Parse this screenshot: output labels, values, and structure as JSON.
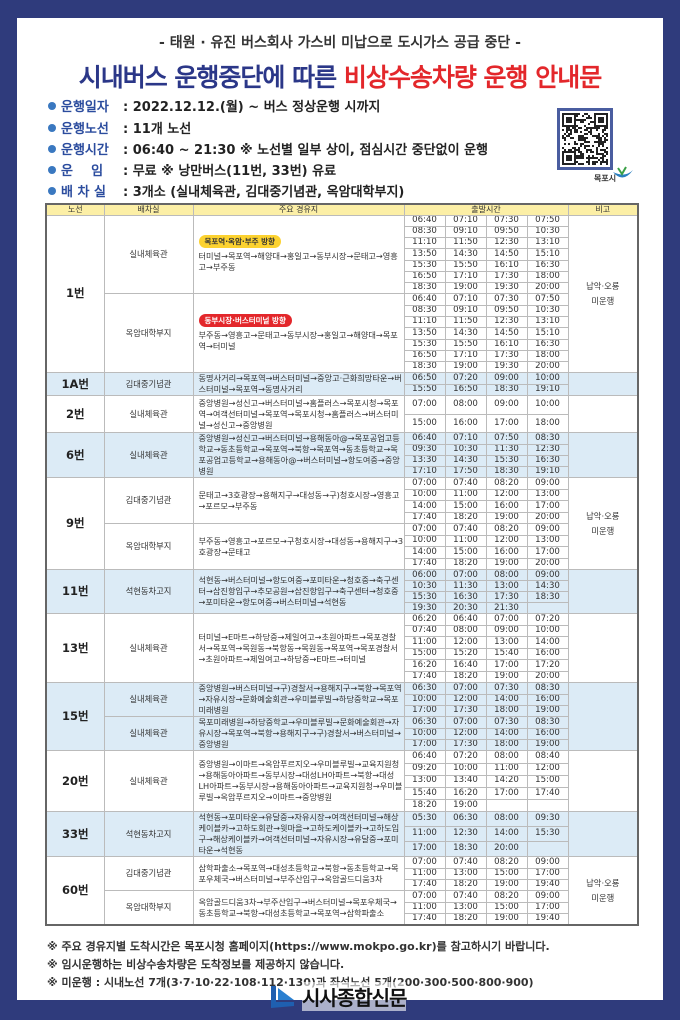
{
  "header": {
    "subtitle": "- 태원 · 유진 버스회사 가스비 미납으로 도시가스 공급 중단 -",
    "title_part1": "시내버스 운행중단에 따른 ",
    "title_part2": "비상수송차량 운행 안내문"
  },
  "info": [
    {
      "label": "운행일자",
      "value": ": 2022.12.12.(월) ~ 버스 정상운행 시까지"
    },
    {
      "label": "운행노선",
      "value": ": 11개 노선"
    },
    {
      "label": "운행시간",
      "value": ": 06:40 ~ 21:30 ※ 노선별 일부 상이, 점심시간 중단없이 운행"
    },
    {
      "label": "운    임",
      "value": ": 무료 ※ 낭만버스(11번, 33번) 유료"
    },
    {
      "label": "배 차 실",
      "value": ": 3개소 (실내체육관, 김대중기념관, 옥암대학부지)"
    }
  ],
  "qr": {
    "label": "목포시"
  },
  "colors": {
    "navy": "#2f3b7c",
    "title_blue": "#2b3788",
    "title_red": "#e3272b",
    "header_yellow": "#fcefa6",
    "shaded_blue": "#dcebf6",
    "badge_yellow": "#fcd230",
    "badge_red": "#e3272b"
  },
  "table": {
    "headers": [
      "노선",
      "배차실",
      "주요 경유지",
      "출발시간",
      "비고"
    ],
    "routes": [
      {
        "name": "1번",
        "shaded": false,
        "note": "납악·오룡 미운행",
        "groups": [
          {
            "depot": "실내체육관",
            "badge": "목포역·옥암·부주 방향",
            "badge_color": "yellow",
            "path": "터미널→목포역→해양대→홍일고→동부시장→문태고→영흥고→부주동",
            "times": [
              [
                "06:40",
                "07:10",
                "07:30",
                "07:50"
              ],
              [
                "08:30",
                "09:10",
                "09:50",
                "10:30"
              ],
              [
                "11:10",
                "11:50",
                "12:30",
                "13:10"
              ],
              [
                "13:50",
                "14:30",
                "14:50",
                "15:10"
              ],
              [
                "15:30",
                "15:50",
                "16:10",
                "16:30"
              ],
              [
                "16:50",
                "17:10",
                "17:30",
                "18:00"
              ],
              [
                "18:30",
                "19:00",
                "19:30",
                "20:00"
              ]
            ]
          },
          {
            "depot": "옥암대학부지",
            "badge": "동부시장·버스터미널 방향",
            "badge_color": "red",
            "path": "부주동→영흥고→문태고→동부시장→홍일고→해양대→목포역→터미널",
            "times": [
              [
                "06:40",
                "07:10",
                "07:30",
                "07:50"
              ],
              [
                "08:30",
                "09:10",
                "09:50",
                "10:30"
              ],
              [
                "11:10",
                "11:50",
                "12:30",
                "13:10"
              ],
              [
                "13:50",
                "14:30",
                "14:50",
                "15:10"
              ],
              [
                "15:30",
                "15:50",
                "16:10",
                "16:30"
              ],
              [
                "16:50",
                "17:10",
                "17:30",
                "18:00"
              ],
              [
                "18:30",
                "19:00",
                "19:30",
                "20:00"
              ]
            ]
          }
        ]
      },
      {
        "name": "1A번",
        "shaded": true,
        "note": "",
        "groups": [
          {
            "depot": "김대중기념관",
            "path": "동명사거리→목포역→버스터미널→중앙고·근화희망타운→버스터미널→목포역→동명사거리",
            "times": [
              [
                "06:50",
                "07:20",
                "09:00",
                "10:00"
              ],
              [
                "15:50",
                "16:50",
                "18:30",
                "19:10"
              ]
            ]
          }
        ]
      },
      {
        "name": "2번",
        "shaded": false,
        "note": "",
        "groups": [
          {
            "depot": "실내체육관",
            "path": "중앙병원→성신고→버스터미널→홈플러스→목포시청→목포역→여객선터미널→목포역→목포시청→홈플러스→버스터미널→성신고→중앙병원",
            "times": [
              [
                "07:00",
                "08:00",
                "09:00",
                "10:00"
              ],
              [
                "15:00",
                "16:00",
                "17:00",
                "18:00"
              ]
            ]
          }
        ]
      },
      {
        "name": "6번",
        "shaded": true,
        "note": "",
        "groups": [
          {
            "depot": "실내체육관",
            "path": "중앙병원→성신고→버스터미널→용해동아@→목포공업고등학교→동초등학교→목포역→북항→목포역→동초등학교→목포공업고등학교→용해동아@→버스터미널→항도여중→중앙병원",
            "times": [
              [
                "06:40",
                "07:10",
                "07:50",
                "08:30"
              ],
              [
                "09:30",
                "10:30",
                "11:30",
                "12:30"
              ],
              [
                "13:30",
                "14:30",
                "15:30",
                "16:30"
              ],
              [
                "17:10",
                "17:50",
                "18:30",
                "19:10"
              ]
            ]
          }
        ]
      },
      {
        "name": "9번",
        "shaded": false,
        "note": "납악·오룡 미운행",
        "groups": [
          {
            "depot": "김대중기념관",
            "path": "문태고→3호광장→용해지구→대성동→구)청호시장→영흥고→포르모→부주동",
            "times": [
              [
                "07:00",
                "07:40",
                "08:20",
                "09:00"
              ],
              [
                "10:00",
                "11:00",
                "12:00",
                "13:00"
              ],
              [
                "14:00",
                "15:00",
                "16:00",
                "17:00"
              ],
              [
                "17:40",
                "18:20",
                "19:00",
                "20:00"
              ]
            ]
          },
          {
            "depot": "옥암대학부지",
            "path": "부주동→영흥고→포르모→구청호시장→대성동→용해지구→3호광장→문태고",
            "times": [
              [
                "07:00",
                "07:40",
                "08:20",
                "09:00"
              ],
              [
                "10:00",
                "11:00",
                "12:00",
                "13:00"
              ],
              [
                "14:00",
                "15:00",
                "16:00",
                "17:00"
              ],
              [
                "17:40",
                "18:20",
                "19:00",
                "20:00"
              ]
            ]
          }
        ]
      },
      {
        "name": "11번",
        "shaded": true,
        "note": "",
        "groups": [
          {
            "depot": "석현동차고지",
            "path": "석현동→버스터미널→항도여중→포미타운→청호중→축구센터→삽진항입구→추모공원→삽진항입구→축구센터→청호중→포미타운→항도여중→버스터미널→석현동",
            "times": [
              [
                "06:00",
                "07:00",
                "08:00",
                "09:00"
              ],
              [
                "10:30",
                "11:30",
                "13:00",
                "14:30"
              ],
              [
                "15:30",
                "16:30",
                "17:30",
                "18:30"
              ],
              [
                "19:30",
                "20:30",
                "21:30",
                ""
              ]
            ]
          }
        ]
      },
      {
        "name": "13번",
        "shaded": false,
        "note": "",
        "groups": [
          {
            "depot": "실내체육관",
            "path": "터미널→E마트→하당중→제일여고→초원아파트→목포경찰서→목포역→목원동→북항동→목원동→목포역→목포경찰서→초원아파트→제일여고→하당중→E마트→터미널",
            "times": [
              [
                "06:20",
                "06:40",
                "07:00",
                "07:20"
              ],
              [
                "07:40",
                "08:00",
                "09:00",
                "10:00"
              ],
              [
                "11:00",
                "12:00",
                "13:00",
                "14:00"
              ],
              [
                "15:00",
                "15:20",
                "15:40",
                "16:00"
              ],
              [
                "16:20",
                "16:40",
                "17:00",
                "17:20"
              ],
              [
                "17:40",
                "18:20",
                "19:00",
                "20:00"
              ]
            ]
          }
        ]
      },
      {
        "name": "15번",
        "shaded": true,
        "note": "",
        "groups": [
          {
            "depot": "실내체육관",
            "path": "중앙병원→버스터미널→구)경찰서→용해지구→북항→목포역→자유시장→문화예술회관→우미블루빌→하당중학교→목포미래병원",
            "times": [
              [
                "06:30",
                "07:00",
                "07:30",
                "08:30"
              ],
              [
                "10:00",
                "12:00",
                "14:00",
                "16:00"
              ],
              [
                "17:00",
                "17:30",
                "18:00",
                "19:00"
              ]
            ]
          },
          {
            "depot": "실내체육관",
            "path": "목포미래병원→하당중학교→우미블루빌→문화예술회관→자유시장→목포역→북항→용해지구→구)경찰서→버스터미널→중앙병원",
            "times": [
              [
                "06:30",
                "07:00",
                "07:30",
                "08:30"
              ],
              [
                "10:00",
                "12:00",
                "14:00",
                "16:00"
              ],
              [
                "17:00",
                "17:30",
                "18:00",
                "19:00"
              ]
            ]
          }
        ]
      },
      {
        "name": "20번",
        "shaded": false,
        "note": "",
        "groups": [
          {
            "depot": "실내체육관",
            "path": "중앙병원→이마트→옥암푸르지오→우미블루빌→교육지원청→용해동아아파트→동부시장→대성LH아파트→북항→대성LH아파트→동부시장→용해동아아파트→교육지원청→우미블루빌→옥암푸르지오→이마트→중앙병원",
            "times": [
              [
                "06:40",
                "07:20",
                "08:00",
                "08:40"
              ],
              [
                "09:20",
                "10:00",
                "11:00",
                "12:00"
              ],
              [
                "13:00",
                "13:40",
                "14:20",
                "15:00"
              ],
              [
                "15:40",
                "16:20",
                "17:00",
                "17:40"
              ],
              [
                "18:20",
                "19:00",
                "",
                ""
              ]
            ]
          }
        ]
      },
      {
        "name": "33번",
        "shaded": true,
        "note": "",
        "groups": [
          {
            "depot": "석현동차고지",
            "path": "석현동→포미타운→유달중→자유시장→여객선터미널→해상케이블카→고하도회관→윗마을→고하도케이블카→고하도입구→해상케이블카→여객선터미널→자유시장→유달중→포미타운→석현동",
            "times": [
              [
                "05:30",
                "06:30",
                "08:00",
                "09:30"
              ],
              [
                "11:00",
                "12:30",
                "14:00",
                "15:30"
              ],
              [
                "17:00",
                "18:30",
                "20:00",
                ""
              ]
            ]
          }
        ]
      },
      {
        "name": "60번",
        "shaded": false,
        "note": "납악·오룡 미운행",
        "groups": [
          {
            "depot": "김대중기념관",
            "path": "삼학파출소→목포역→대성초등학교→북항→동초등학교→목포우체국→버스터미널→부주산입구→옥암골드디움3차",
            "times": [
              [
                "07:00",
                "07:40",
                "08:20",
                "09:00"
              ],
              [
                "11:00",
                "13:00",
                "15:00",
                "17:00"
              ],
              [
                "17:40",
                "18:20",
                "19:00",
                "19:40"
              ]
            ]
          },
          {
            "depot": "옥암대학부지",
            "path": "옥암골드디움3차→부주산입구→버스터미널→목포우체국→동초등학교→북항→대성초등학교→목포역→삼학파출소",
            "times": [
              [
                "07:00",
                "07:40",
                "08:20",
                "09:00"
              ],
              [
                "11:00",
                "13:00",
                "15:00",
                "17:00"
              ],
              [
                "17:40",
                "18:20",
                "19:00",
                "19:40"
              ]
            ]
          }
        ]
      }
    ]
  },
  "notes": [
    "※ 주요 경유지별 도착시간은 목포시청 홈페이지(https://www.mokpo.go.kr)를 참고하시기 바랍니다.",
    "※ 임시운행하는 비상수송차량은 도착정보를 제공하지 않습니다.",
    "※ 미운행 : 시내노선 7개(3·7·10·22·108·112·130)과 좌석노선 5개(200·300·500·800·900)"
  ],
  "logo": {
    "text": "시사종합신문"
  }
}
